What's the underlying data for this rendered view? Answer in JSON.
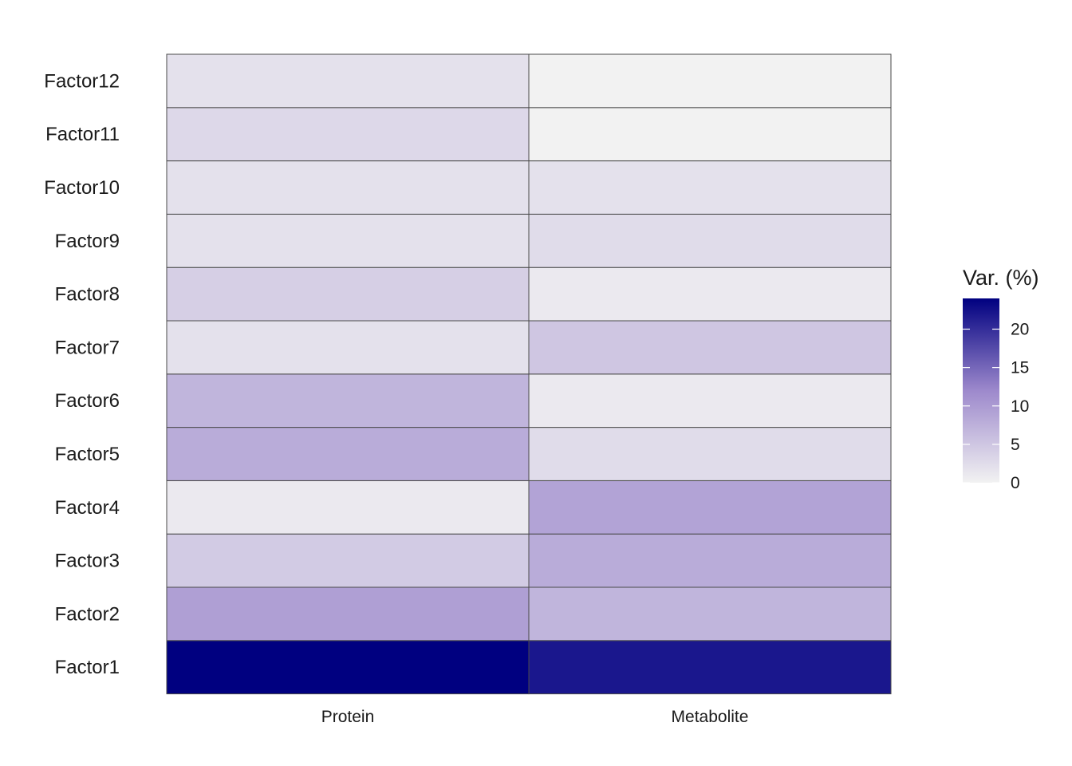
{
  "chart_data": {
    "type": "heatmap",
    "title": "",
    "xlabel": "",
    "ylabel": "",
    "columns": [
      "Protein",
      "Metabolite"
    ],
    "rows": [
      "Factor1",
      "Factor2",
      "Factor3",
      "Factor4",
      "Factor5",
      "Factor6",
      "Factor7",
      "Factor8",
      "Factor9",
      "Factor10",
      "Factor11",
      "Factor12"
    ],
    "values": [
      [
        24.0,
        22.0
      ],
      [
        9.5,
        7.0
      ],
      [
        4.5,
        8.0
      ],
      [
        1.0,
        9.0
      ],
      [
        8.0,
        2.5
      ],
      [
        7.0,
        1.0
      ],
      [
        2.0,
        5.0
      ],
      [
        4.0,
        1.0
      ],
      [
        2.0,
        2.5
      ],
      [
        2.0,
        2.0
      ],
      [
        3.0,
        0.0
      ],
      [
        2.0,
        0.0
      ]
    ],
    "legend": {
      "title": "Var. (%)",
      "ticks": [
        0,
        5,
        10,
        15,
        20
      ],
      "range": [
        0,
        24
      ],
      "colors": {
        "low": "#f2f2f2",
        "mid": "#9d89cc",
        "high": "#000080"
      },
      "placement": "right"
    },
    "grid": false
  }
}
